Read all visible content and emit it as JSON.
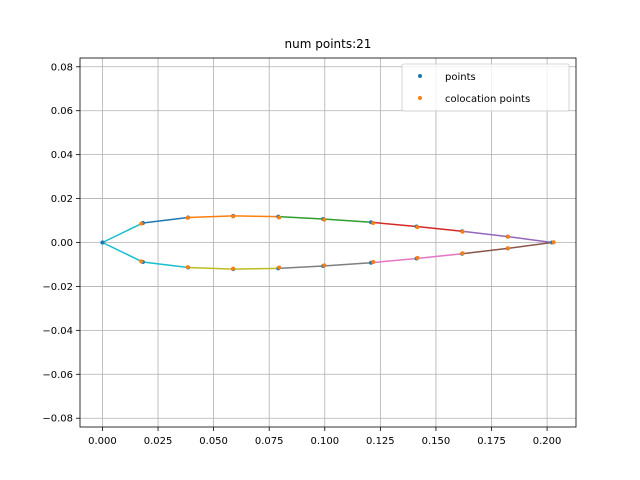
{
  "chart_data": {
    "type": "scatter",
    "title": "num points:21",
    "xlabel": "",
    "ylabel": "",
    "xlim": [
      -0.0101,
      0.213
    ],
    "ylim": [
      -0.084,
      0.084
    ],
    "xticks": [
      0.0,
      0.025,
      0.05,
      0.075,
      0.1,
      0.125,
      0.15,
      0.175,
      0.2
    ],
    "xtick_labels": [
      "0.000",
      "0.025",
      "0.050",
      "0.075",
      "0.100",
      "0.125",
      "0.150",
      "0.175",
      "0.200"
    ],
    "yticks": [
      -0.08,
      -0.06,
      -0.04,
      -0.02,
      0.0,
      0.02,
      0.04,
      0.06,
      0.08
    ],
    "ytick_labels": [
      "−0.08",
      "−0.06",
      "−0.04",
      "−0.02",
      "0.00",
      "0.02",
      "0.04",
      "0.06",
      "0.08"
    ],
    "grid": true,
    "legend": "upper-right",
    "panels": {
      "x": [
        0.0,
        0.0182,
        0.0385,
        0.0588,
        0.0791,
        0.0993,
        0.1208,
        0.1413,
        0.1618,
        0.1823,
        0.2022,
        0.1823,
        0.1618,
        0.1413,
        0.1208,
        0.0993,
        0.0791,
        0.0588,
        0.0385,
        0.0182,
        0.0
      ],
      "y": [
        0.0,
        0.0089,
        0.0114,
        0.0121,
        0.0118,
        0.0107,
        0.0092,
        0.0073,
        0.0051,
        0.0027,
        0.0,
        -0.0027,
        -0.0051,
        -0.0073,
        -0.0092,
        -0.0107,
        -0.0118,
        -0.0121,
        -0.0114,
        -0.0089,
        0.0
      ],
      "colors": [
        "#17becf",
        "#1f77b4",
        "#ff7f0e",
        "#ff7f0e",
        "#2ca02c",
        "#2ca02c",
        "#d62728",
        "#d62728",
        "#9467bd",
        "#9467bd",
        "#8c564b",
        "#8c564b",
        "#e377c2",
        "#e377c2",
        "#7f7f7f",
        "#7f7f7f",
        "#bcbd22",
        "#bcbd22",
        "#17becf",
        "#17becf"
      ]
    },
    "series": [
      {
        "name": "points",
        "color": "#1f77b4",
        "x": [
          0.0,
          0.0182,
          0.0385,
          0.0588,
          0.0791,
          0.0993,
          0.1208,
          0.1413,
          0.1618,
          0.1823,
          0.2022,
          0.1823,
          0.1618,
          0.1413,
          0.1208,
          0.0993,
          0.0791,
          0.0588,
          0.0385,
          0.0182,
          0.0
        ],
        "y": [
          0.0,
          0.0089,
          0.0114,
          0.0121,
          0.0118,
          0.0107,
          0.0092,
          0.0073,
          0.0051,
          0.0027,
          0.0,
          -0.0027,
          -0.0051,
          -0.0073,
          -0.0092,
          -0.0107,
          -0.0118,
          -0.0121,
          -0.0114,
          -0.0089,
          0.0
        ]
      },
      {
        "name": "colocation points",
        "color": "#ff7f0e",
        "x": [
          0.0175,
          0.0384,
          0.0588,
          0.0795,
          0.0998,
          0.1218,
          0.1417,
          0.162,
          0.1825,
          0.203,
          0.1825,
          0.162,
          0.1417,
          0.1218,
          0.0998,
          0.0795,
          0.0588,
          0.0384,
          0.0175
        ],
        "y": [
          0.0086,
          0.0112,
          0.0119,
          0.0114,
          0.0104,
          0.0089,
          0.007,
          0.0049,
          0.0026,
          0.0001,
          -0.0026,
          -0.0049,
          -0.007,
          -0.0089,
          -0.0104,
          -0.0114,
          -0.0119,
          -0.0112,
          -0.0086
        ]
      }
    ]
  }
}
